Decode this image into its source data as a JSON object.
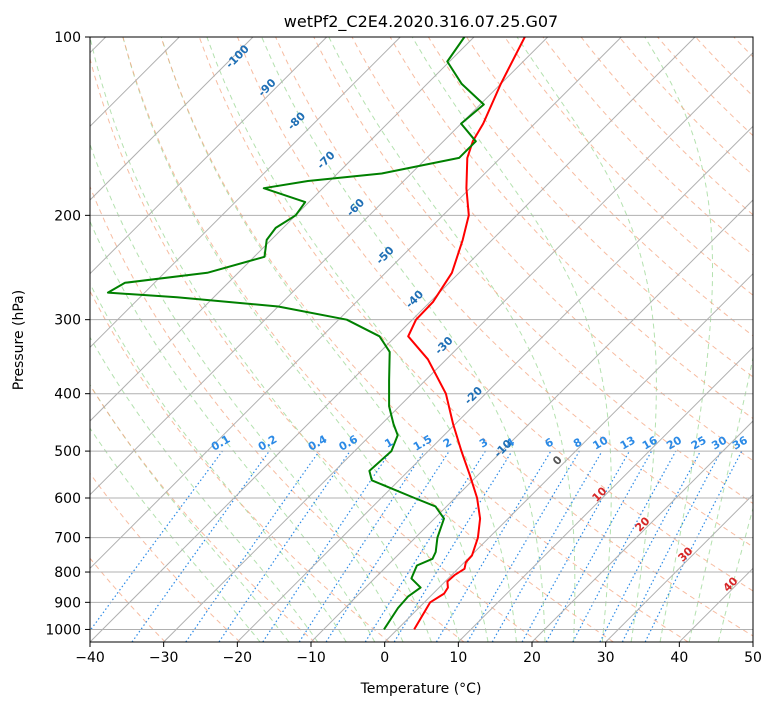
{
  "chart_data": {
    "type": "line",
    "title": "wetPf2_C2E4.2020.316.07.25.G07",
    "xlabel": "Temperature (°C)",
    "ylabel": "Pressure (hPa)",
    "xlim": [
      -40,
      50
    ],
    "ylim": [
      1050,
      100
    ],
    "yscale": "log",
    "skew_degrees": 45,
    "grid": true,
    "x_ticks": [
      -40,
      -30,
      -20,
      -10,
      0,
      10,
      20,
      30,
      40,
      50
    ],
    "y_ticks": [
      100,
      200,
      300,
      400,
      500,
      600,
      700,
      800,
      900,
      1000
    ],
    "series": [
      {
        "color": "#ff0000",
        "points": [
          [
            1000,
            2.3
          ],
          [
            900,
            0.8
          ],
          [
            870,
            1.5
          ],
          [
            850,
            1.2
          ],
          [
            830,
            0.3
          ],
          [
            810,
            0.4
          ],
          [
            790,
            0.9
          ],
          [
            770,
            0.2
          ],
          [
            750,
            0.1
          ],
          [
            700,
            -1.5
          ],
          [
            650,
            -3.8
          ],
          [
            600,
            -7.0
          ],
          [
            550,
            -11.0
          ],
          [
            500,
            -15.5
          ],
          [
            450,
            -20.3
          ],
          [
            400,
            -25.4
          ],
          [
            350,
            -32.5
          ],
          [
            320,
            -38.3
          ],
          [
            300,
            -39.5
          ],
          [
            280,
            -39.6
          ],
          [
            250,
            -41.0
          ],
          [
            220,
            -44.0
          ],
          [
            200,
            -46.5
          ],
          [
            180,
            -50.5
          ],
          [
            160,
            -54.5
          ],
          [
            150,
            -56.0
          ],
          [
            140,
            -57.0
          ],
          [
            120,
            -60.0
          ],
          [
            100,
            -63.1
          ]
        ]
      },
      {
        "color": "#008000",
        "points": [
          [
            1000,
            -1.8
          ],
          [
            920,
            -2.8
          ],
          [
            880,
            -3.0
          ],
          [
            850,
            -2.5
          ],
          [
            820,
            -5.0
          ],
          [
            780,
            -6.0
          ],
          [
            760,
            -4.8
          ],
          [
            740,
            -5.3
          ],
          [
            700,
            -7.0
          ],
          [
            650,
            -8.7
          ],
          [
            620,
            -11.5
          ],
          [
            600,
            -15.5
          ],
          [
            560,
            -23.7
          ],
          [
            540,
            -25.3
          ],
          [
            500,
            -25.0
          ],
          [
            470,
            -26.3
          ],
          [
            450,
            -28.4
          ],
          [
            420,
            -31.4
          ],
          [
            380,
            -34.9
          ],
          [
            340,
            -38.7
          ],
          [
            320,
            -42.2
          ],
          [
            300,
            -48.9
          ],
          [
            285,
            -60.0
          ],
          [
            275,
            -75.0
          ],
          [
            270,
            -85.0
          ],
          [
            260,
            -84.0
          ],
          [
            250,
            -74.2
          ],
          [
            235,
            -68.6
          ],
          [
            220,
            -70.6
          ],
          [
            210,
            -71.0
          ],
          [
            200,
            -70.0
          ],
          [
            190,
            -70.5
          ],
          [
            180,
            -78.0
          ],
          [
            175,
            -73.0
          ],
          [
            170,
            -64.0
          ],
          [
            160,
            -55.6
          ],
          [
            150,
            -55.6
          ],
          [
            140,
            -60.0
          ],
          [
            130,
            -59.5
          ],
          [
            120,
            -65.3
          ],
          [
            110,
            -70.3
          ],
          [
            100,
            -71.3
          ]
        ]
      }
    ],
    "dry_adiabats": [
      -100,
      -90,
      -80,
      -70,
      -60,
      -50,
      -40,
      -30,
      -20,
      -10
    ],
    "moist_adiabats": [
      0,
      10,
      20,
      30,
      40
    ],
    "mixing_ratios": [
      "0.1",
      "0.2",
      "0.4",
      "0.6",
      "1",
      "1.5",
      "2",
      "3",
      "4",
      "6",
      "8",
      "10",
      "13",
      "16",
      "20",
      "25",
      "30",
      "36"
    ]
  }
}
